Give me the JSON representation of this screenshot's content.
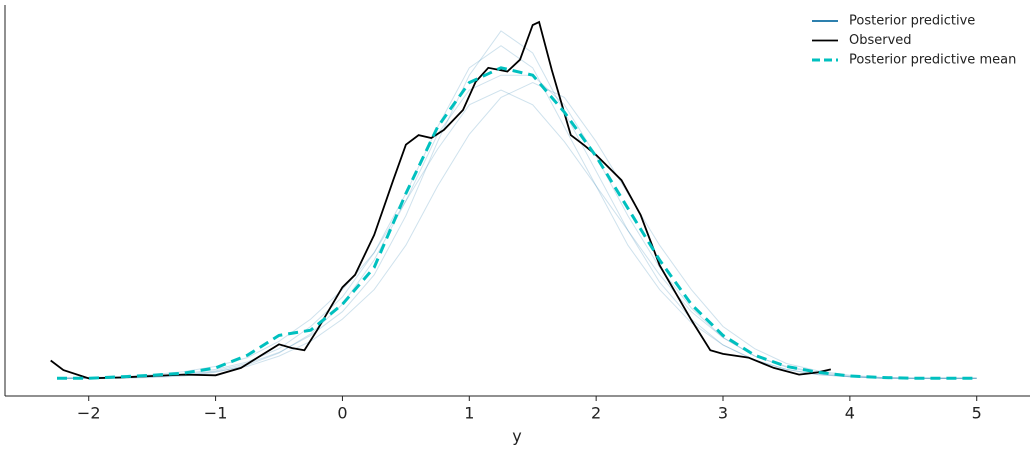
{
  "chart_data": {
    "type": "line",
    "xlabel": "y",
    "xlim": [
      -2.66,
      5.42
    ],
    "ylim": [
      -0.024,
      0.505
    ],
    "xticks": [
      {
        "value": -2,
        "label": "−2"
      },
      {
        "value": -1,
        "label": "−1"
      },
      0,
      1,
      2,
      3,
      4,
      5
    ],
    "legend": "upper right",
    "series": [
      {
        "name": "Posterior predictive",
        "color": "#0f6ea3",
        "linestyle": "solid",
        "x": [
          -2.25,
          -2,
          -1.75,
          -1.5,
          -1.25,
          -1,
          -0.75,
          -0.5,
          -0.25,
          0,
          0.25,
          0.5,
          0.75,
          1,
          1.25,
          1.5,
          1.75,
          2,
          2.25,
          2.5,
          2.75,
          3,
          3.25,
          3.5,
          3.75,
          4,
          4.25,
          4.5,
          4.75,
          5
        ],
        "values": [
          [
            0,
            0,
            0.001,
            0.003,
            0.006,
            0.012,
            0.022,
            0.04,
            0.07,
            0.11,
            0.17,
            0.25,
            0.34,
            0.42,
            0.45,
            0.42,
            0.34,
            0.26,
            0.18,
            0.12,
            0.075,
            0.045,
            0.025,
            0.012,
            0.005,
            0.002,
            0,
            0,
            0,
            0
          ],
          [
            0,
            0,
            0.001,
            0.002,
            0.004,
            0.009,
            0.016,
            0.03,
            0.05,
            0.08,
            0.12,
            0.18,
            0.26,
            0.33,
            0.38,
            0.4,
            0.38,
            0.32,
            0.25,
            0.18,
            0.12,
            0.07,
            0.04,
            0.02,
            0.01,
            0.004,
            0.001,
            0,
            0,
            0
          ],
          [
            0,
            0.001,
            0.002,
            0.005,
            0.009,
            0.016,
            0.028,
            0.05,
            0.08,
            0.12,
            0.17,
            0.24,
            0.31,
            0.37,
            0.39,
            0.37,
            0.32,
            0.26,
            0.2,
            0.14,
            0.09,
            0.055,
            0.03,
            0.016,
            0.008,
            0.003,
            0.001,
            0,
            0,
            0
          ],
          [
            0,
            0,
            0.001,
            0.002,
            0.005,
            0.01,
            0.02,
            0.035,
            0.058,
            0.09,
            0.14,
            0.22,
            0.32,
            0.41,
            0.47,
            0.44,
            0.36,
            0.28,
            0.2,
            0.13,
            0.08,
            0.045,
            0.024,
            0.012,
            0.005,
            0.002,
            0,
            0,
            0,
            0
          ],
          [
            0,
            0,
            0,
            0.001,
            0.003,
            0.008,
            0.018,
            0.034,
            0.06,
            0.1,
            0.16,
            0.24,
            0.33,
            0.39,
            0.41,
            0.41,
            0.37,
            0.3,
            0.22,
            0.15,
            0.095,
            0.055,
            0.03,
            0.015,
            0.007,
            0.002,
            0,
            0,
            0,
            0
          ]
        ]
      },
      {
        "name": "Observed",
        "color": "#000000",
        "linestyle": "solid",
        "x": [
          -2.3,
          -2.2,
          -2,
          -1.75,
          -1.5,
          -1.25,
          -1,
          -0.8,
          -0.5,
          -0.4,
          -0.3,
          -0.2,
          0,
          0.1,
          0.25,
          0.4,
          0.5,
          0.6,
          0.7,
          0.8,
          0.95,
          1.05,
          1.15,
          1.3,
          1.4,
          1.5,
          1.55,
          1.65,
          1.8,
          1.9,
          2,
          2.2,
          2.35,
          2.5,
          2.75,
          2.9,
          3,
          3.2,
          3.4,
          3.6,
          3.75,
          3.85
        ],
        "values": [
          0.024,
          0.011,
          0,
          0.001,
          0.003,
          0.005,
          0.004,
          0.014,
          0.046,
          0.041,
          0.038,
          0.065,
          0.123,
          0.14,
          0.194,
          0.268,
          0.316,
          0.329,
          0.325,
          0.336,
          0.363,
          0.401,
          0.42,
          0.415,
          0.431,
          0.478,
          0.482,
          0.417,
          0.329,
          0.316,
          0.302,
          0.268,
          0.221,
          0.153,
          0.079,
          0.038,
          0.033,
          0.028,
          0.014,
          0.005,
          0.008,
          0.012
        ]
      },
      {
        "name": "Posterior predictive mean",
        "color": "#00c0bf",
        "linestyle": "dashed",
        "x": [
          -2.25,
          -2,
          -1.75,
          -1.5,
          -1.25,
          -1,
          -0.75,
          -0.5,
          -0.25,
          0,
          0.25,
          0.5,
          0.75,
          1,
          1.25,
          1.5,
          1.75,
          2,
          2.25,
          2.5,
          2.75,
          3,
          3.25,
          3.5,
          3.75,
          4,
          4.25,
          4.5,
          4.75,
          5
        ],
        "values": [
          0,
          0,
          0.002,
          0.004,
          0.007,
          0.014,
          0.031,
          0.058,
          0.065,
          0.1,
          0.15,
          0.25,
          0.34,
          0.4,
          0.42,
          0.41,
          0.36,
          0.3,
          0.23,
          0.16,
          0.1,
          0.058,
          0.031,
          0.016,
          0.008,
          0.003,
          0.001,
          0,
          0,
          0
        ]
      }
    ]
  }
}
